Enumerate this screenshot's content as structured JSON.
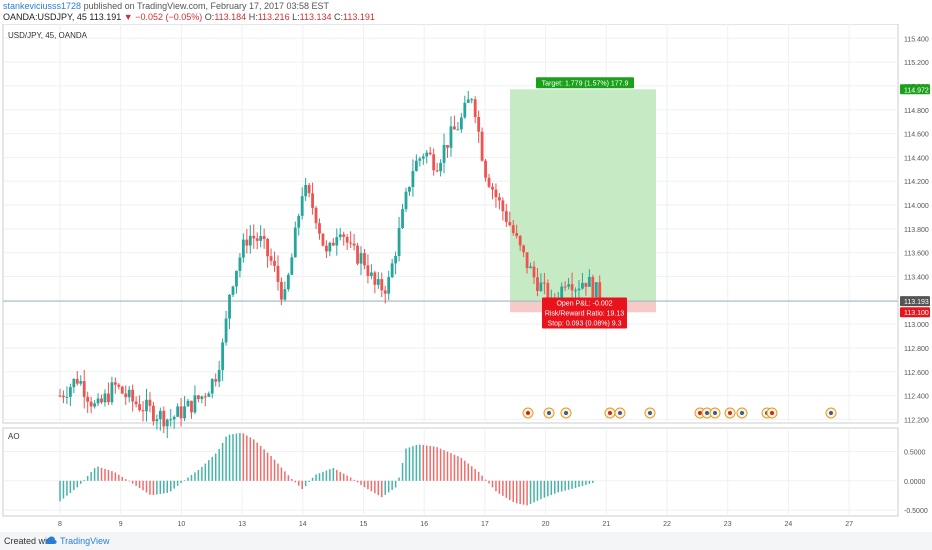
{
  "header": {
    "author": "stankeviciusss1728",
    "published": "published on TradingView.com, February 17, 2017 03:58 EST",
    "symbol": "OANDA:USDJPY, 45",
    "last": "113.191",
    "change": "−0.052 (−0.05%)",
    "o_label": "O:",
    "o_value": "113.184",
    "h_label": "H:",
    "h_value": "113.216",
    "l_label": "L:",
    "l_value": "113.134",
    "c_label": "C:",
    "c_value": "113.191"
  },
  "footer": {
    "created_with": "Created with",
    "brand": "TradingView"
  },
  "colors": {
    "up": "#26a69a",
    "down": "#ef5350",
    "target_zone": "#c6ebc4",
    "stop_zone": "#f7caca",
    "target_label": "#1aa01a",
    "stop_label": "#e8131c",
    "last_price_line": "#9fb6c2"
  },
  "chart_data": [
    {
      "type": "candlestick",
      "legend": "USD/JPY, 45, OANDA",
      "ylim": [
        112.17,
        115.52
      ],
      "yticks": [
        "115.400",
        "115.200",
        "115.000",
        "114.800",
        "114.600",
        "114.400",
        "114.200",
        "114.000",
        "113.800",
        "113.600",
        "113.400",
        "113.200",
        "113.000",
        "112.800",
        "112.600",
        "112.400",
        "112.200"
      ],
      "ytick_values": [
        115.4,
        115.2,
        115.0,
        114.8,
        114.6,
        114.4,
        114.2,
        114.0,
        113.8,
        113.6,
        113.4,
        113.2,
        113.0,
        112.8,
        112.6,
        112.4,
        112.2
      ],
      "xticks": [
        "8",
        "9",
        "10",
        "13",
        "14",
        "15",
        "16",
        "17",
        "20",
        "21",
        "22",
        "23",
        "24",
        "27"
      ],
      "price_badges": [
        {
          "value": 114.972,
          "label": "114.972",
          "color": "#1aa01a"
        },
        {
          "value": 113.193,
          "label": "113.193",
          "color": "#555555"
        },
        {
          "value": 113.1,
          "label": "113.100",
          "color": "#e8131c"
        }
      ],
      "position": {
        "entry": 113.19,
        "target": 114.972,
        "stop": 113.1,
        "start_day": 17.45,
        "end_day": 21.85,
        "target_text": "Target: 1.779 (1.57%) 177.9",
        "stats_text": [
          "Open P&L: -0.002",
          "Risk/Reward Ratio: 19.13",
          "Stop: 0.093 (0.08%) 9.3"
        ]
      },
      "path": [
        [
          7.0,
          112.4
        ],
        [
          7.3,
          112.55
        ],
        [
          7.6,
          112.28
        ],
        [
          7.9,
          112.48
        ],
        [
          8.2,
          112.35
        ],
        [
          8.5,
          112.27
        ],
        [
          8.8,
          112.2
        ],
        [
          9.1,
          112.3
        ],
        [
          9.35,
          112.4
        ],
        [
          9.55,
          112.55
        ],
        [
          9.7,
          112.85
        ],
        [
          9.8,
          113.3
        ],
        [
          9.95,
          113.55
        ],
        [
          10.1,
          113.75
        ],
        [
          10.3,
          113.7
        ],
        [
          10.5,
          113.5
        ],
        [
          10.7,
          113.2
        ],
        [
          10.85,
          113.65
        ],
        [
          11.0,
          114.15
        ],
        [
          11.2,
          113.95
        ],
        [
          11.4,
          113.55
        ],
        [
          11.6,
          113.85
        ],
        [
          11.8,
          113.6
        ],
        [
          12.0,
          113.55
        ],
        [
          12.2,
          113.3
        ],
        [
          12.4,
          113.32
        ],
        [
          12.6,
          113.8
        ],
        [
          12.8,
          114.3
        ],
        [
          13.0,
          114.45
        ],
        [
          13.2,
          114.35
        ],
        [
          13.4,
          114.55
        ],
        [
          13.6,
          114.7
        ],
        [
          13.8,
          114.95
        ],
        [
          13.9,
          114.6
        ],
        [
          14.0,
          114.3
        ],
        [
          14.2,
          114.05
        ],
        [
          14.4,
          113.85
        ],
        [
          14.6,
          113.6
        ],
        [
          14.8,
          113.4
        ],
        [
          14.95,
          113.3
        ],
        [
          15.1,
          113.15
        ],
        [
          15.25,
          113.28
        ],
        [
          15.35,
          113.42
        ],
        [
          15.5,
          113.32
        ],
        [
          15.65,
          113.38
        ],
        [
          15.8,
          113.29
        ],
        [
          15.9,
          113.24
        ],
        [
          16.0,
          113.19
        ]
      ],
      "day_map": [
        [
          7,
          8
        ],
        [
          8,
          9
        ],
        [
          9,
          10
        ],
        [
          10,
          13
        ],
        [
          11,
          14
        ],
        [
          12,
          15
        ],
        [
          13,
          16
        ],
        [
          14,
          17
        ],
        [
          15,
          20
        ],
        [
          16,
          21
        ],
        [
          17,
          22
        ],
        [
          18,
          23
        ],
        [
          19,
          24
        ],
        [
          20,
          27
        ]
      ]
    },
    {
      "type": "histogram",
      "legend": "AO",
      "ylim": [
        -0.6,
        0.9
      ],
      "yticks": [
        "0.5000",
        "0.0000",
        "-0.5000"
      ],
      "ytick_values": [
        0.5,
        0.0,
        -0.5
      ],
      "path": [
        [
          7.0,
          -0.35
        ],
        [
          7.3,
          -0.1
        ],
        [
          7.6,
          0.25
        ],
        [
          7.9,
          0.15
        ],
        [
          8.2,
          -0.05
        ],
        [
          8.5,
          -0.25
        ],
        [
          8.8,
          -0.2
        ],
        [
          9.1,
          0.05
        ],
        [
          9.3,
          0.2
        ],
        [
          9.6,
          0.5
        ],
        [
          9.75,
          0.78
        ],
        [
          10.0,
          0.82
        ],
        [
          10.2,
          0.7
        ],
        [
          10.5,
          0.4
        ],
        [
          10.8,
          0.05
        ],
        [
          11.0,
          -0.15
        ],
        [
          11.2,
          0.1
        ],
        [
          11.5,
          0.22
        ],
        [
          11.8,
          0.05
        ],
        [
          12.0,
          -0.1
        ],
        [
          12.3,
          -0.28
        ],
        [
          12.55,
          -0.1
        ],
        [
          12.7,
          0.55
        ],
        [
          12.9,
          0.62
        ],
        [
          13.2,
          0.58
        ],
        [
          13.6,
          0.4
        ],
        [
          13.9,
          0.15
        ],
        [
          14.2,
          -0.2
        ],
        [
          14.5,
          -0.38
        ],
        [
          14.7,
          -0.42
        ],
        [
          14.95,
          -0.3
        ],
        [
          15.2,
          -0.2
        ],
        [
          15.5,
          -0.12
        ],
        [
          15.8,
          -0.03
        ]
      ]
    }
  ]
}
